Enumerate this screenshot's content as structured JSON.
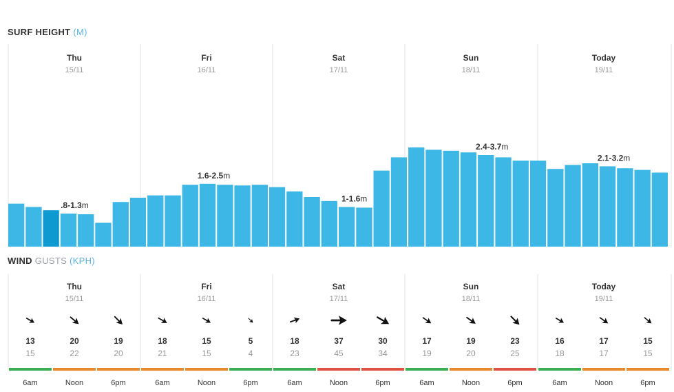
{
  "surf": {
    "title_bold": "SURF HEIGHT",
    "title_unit": "(M)"
  },
  "wind": {
    "title_bold": "WIND",
    "title_gusts": "GUSTS",
    "title_unit": "(KPH)"
  },
  "colors": {
    "bar": "#3db8e6",
    "bar_selected": "#0e9ad0",
    "divider": "#e6e6e6",
    "green": "#3cae54",
    "orange": "#e8892e",
    "red": "#e05242"
  },
  "chart_data": {
    "type": "bar",
    "title": "SURF HEIGHT (M)",
    "days": [
      {
        "day": "Thu",
        "date": "15/11",
        "range_bold": ".8-1.3",
        "range_unit": "m",
        "label_index": 3
      },
      {
        "day": "Fri",
        "date": "16/11",
        "range_bold": "1.6-2.5",
        "range_unit": "m",
        "label_index": 3
      },
      {
        "day": "Sat",
        "date": "17/11",
        "range_bold": "1-1.6",
        "range_unit": "m",
        "label_index": 3
      },
      {
        "day": "Sun",
        "date": "18/11",
        "range_bold": "2.4-3.7",
        "range_unit": "m",
        "label_index": 3
      },
      {
        "day": "Today",
        "date": "19/11",
        "range_bold": "2.1-3.2",
        "range_unit": "m",
        "label_index": 3
      }
    ],
    "values": [
      1.3,
      1.2,
      1.1,
      1.0,
      0.98,
      0.72,
      1.35,
      1.48,
      1.55,
      1.55,
      1.87,
      1.9,
      1.87,
      1.85,
      1.87,
      1.8,
      1.67,
      1.5,
      1.38,
      1.2,
      1.18,
      2.3,
      2.7,
      3.0,
      2.93,
      2.9,
      2.85,
      2.77,
      2.7,
      2.6,
      2.6,
      2.35,
      2.47,
      2.52,
      2.43,
      2.37,
      2.32,
      2.24
    ],
    "selected_index": 2,
    "ylim": [
      0,
      6
    ]
  },
  "wind_data": {
    "days": [
      {
        "day": "Thu",
        "date": "15/11",
        "slots": [
          {
            "time": "6am",
            "speed": "13",
            "gust": "15",
            "dir": 30,
            "size": 1.0,
            "level": "green"
          },
          {
            "time": "Noon",
            "speed": "20",
            "gust": "22",
            "dir": 40,
            "size": 1.2,
            "level": "orange"
          },
          {
            "time": "6pm",
            "speed": "19",
            "gust": "20",
            "dir": 45,
            "size": 1.2,
            "level": "orange"
          }
        ]
      },
      {
        "day": "Fri",
        "date": "16/11",
        "slots": [
          {
            "time": "6am",
            "speed": "18",
            "gust": "21",
            "dir": 30,
            "size": 1.1,
            "level": "orange"
          },
          {
            "time": "Noon",
            "speed": "15",
            "gust": "15",
            "dir": 30,
            "size": 1.0,
            "level": "orange"
          },
          {
            "time": "6pm",
            "speed": "5",
            "gust": "4",
            "dir": 45,
            "size": 0.7,
            "level": "green"
          }
        ]
      },
      {
        "day": "Sat",
        "date": "17/11",
        "slots": [
          {
            "time": "6am",
            "speed": "18",
            "gust": "23",
            "dir": -20,
            "size": 1.1,
            "level": "green"
          },
          {
            "time": "Noon",
            "speed": "37",
            "gust": "45",
            "dir": 0,
            "size": 1.7,
            "level": "red"
          },
          {
            "time": "6pm",
            "speed": "30",
            "gust": "34",
            "dir": 30,
            "size": 1.5,
            "level": "red"
          }
        ]
      },
      {
        "day": "Sun",
        "date": "18/11",
        "slots": [
          {
            "time": "6am",
            "speed": "17",
            "gust": "19",
            "dir": 35,
            "size": 1.1,
            "level": "green"
          },
          {
            "time": "Noon",
            "speed": "19",
            "gust": "20",
            "dir": 35,
            "size": 1.2,
            "level": "orange"
          },
          {
            "time": "6pm",
            "speed": "23",
            "gust": "25",
            "dir": 45,
            "size": 1.3,
            "level": "red"
          }
        ]
      },
      {
        "day": "Today",
        "date": "19/11",
        "slots": [
          {
            "time": "6am",
            "speed": "16",
            "gust": "18",
            "dir": 30,
            "size": 1.0,
            "level": "green"
          },
          {
            "time": "Noon",
            "speed": "17",
            "gust": "17",
            "dir": 35,
            "size": 1.1,
            "level": "orange"
          },
          {
            "time": "6pm",
            "speed": "15",
            "gust": "15",
            "dir": 40,
            "size": 1.0,
            "level": "orange"
          }
        ]
      }
    ]
  }
}
